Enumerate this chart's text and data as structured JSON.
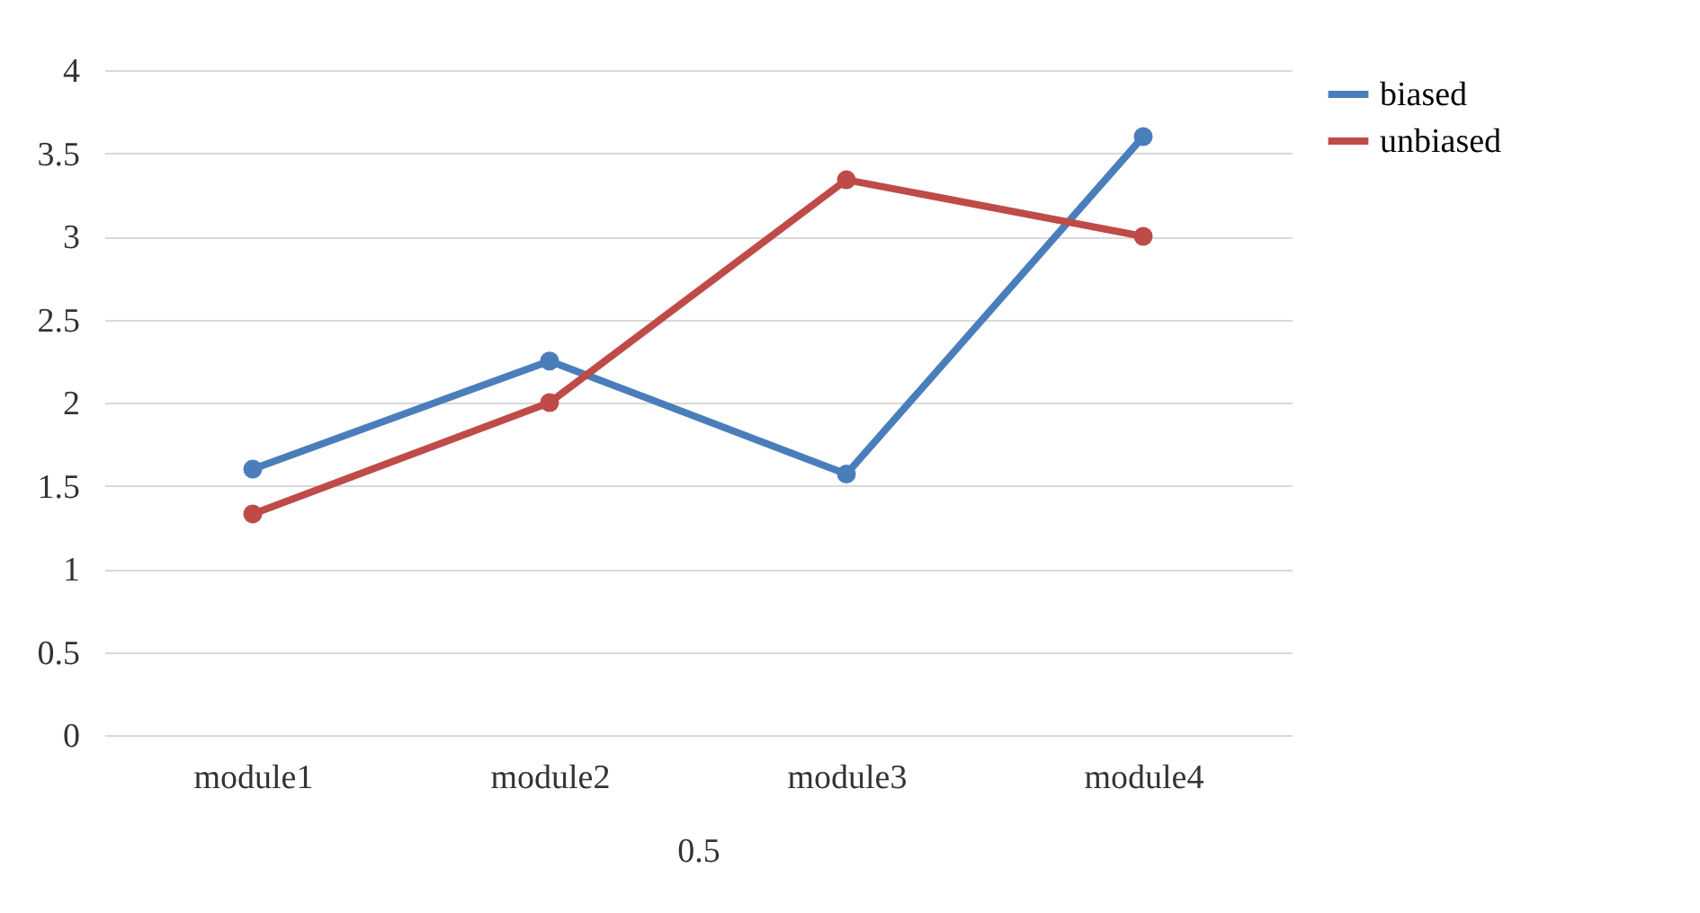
{
  "chart_data": {
    "type": "line",
    "categories": [
      "module1",
      "module2",
      "module3",
      "module4"
    ],
    "xlabel": "0.5",
    "series": [
      {
        "name": "biased",
        "color": "#4a7ebb",
        "values": [
          1.6,
          2.25,
          1.57,
          3.6
        ]
      },
      {
        "name": "unbiased",
        "color": "#be4b48",
        "values": [
          1.33,
          2.0,
          3.34,
          3.0
        ]
      }
    ],
    "ylim": [
      0,
      4
    ],
    "yticks": [
      0,
      0.5,
      1,
      1.5,
      2,
      2.5,
      3,
      3.5,
      4
    ],
    "grid": "y",
    "legend": "right",
    "marker": "circle",
    "line_style": "solid"
  }
}
